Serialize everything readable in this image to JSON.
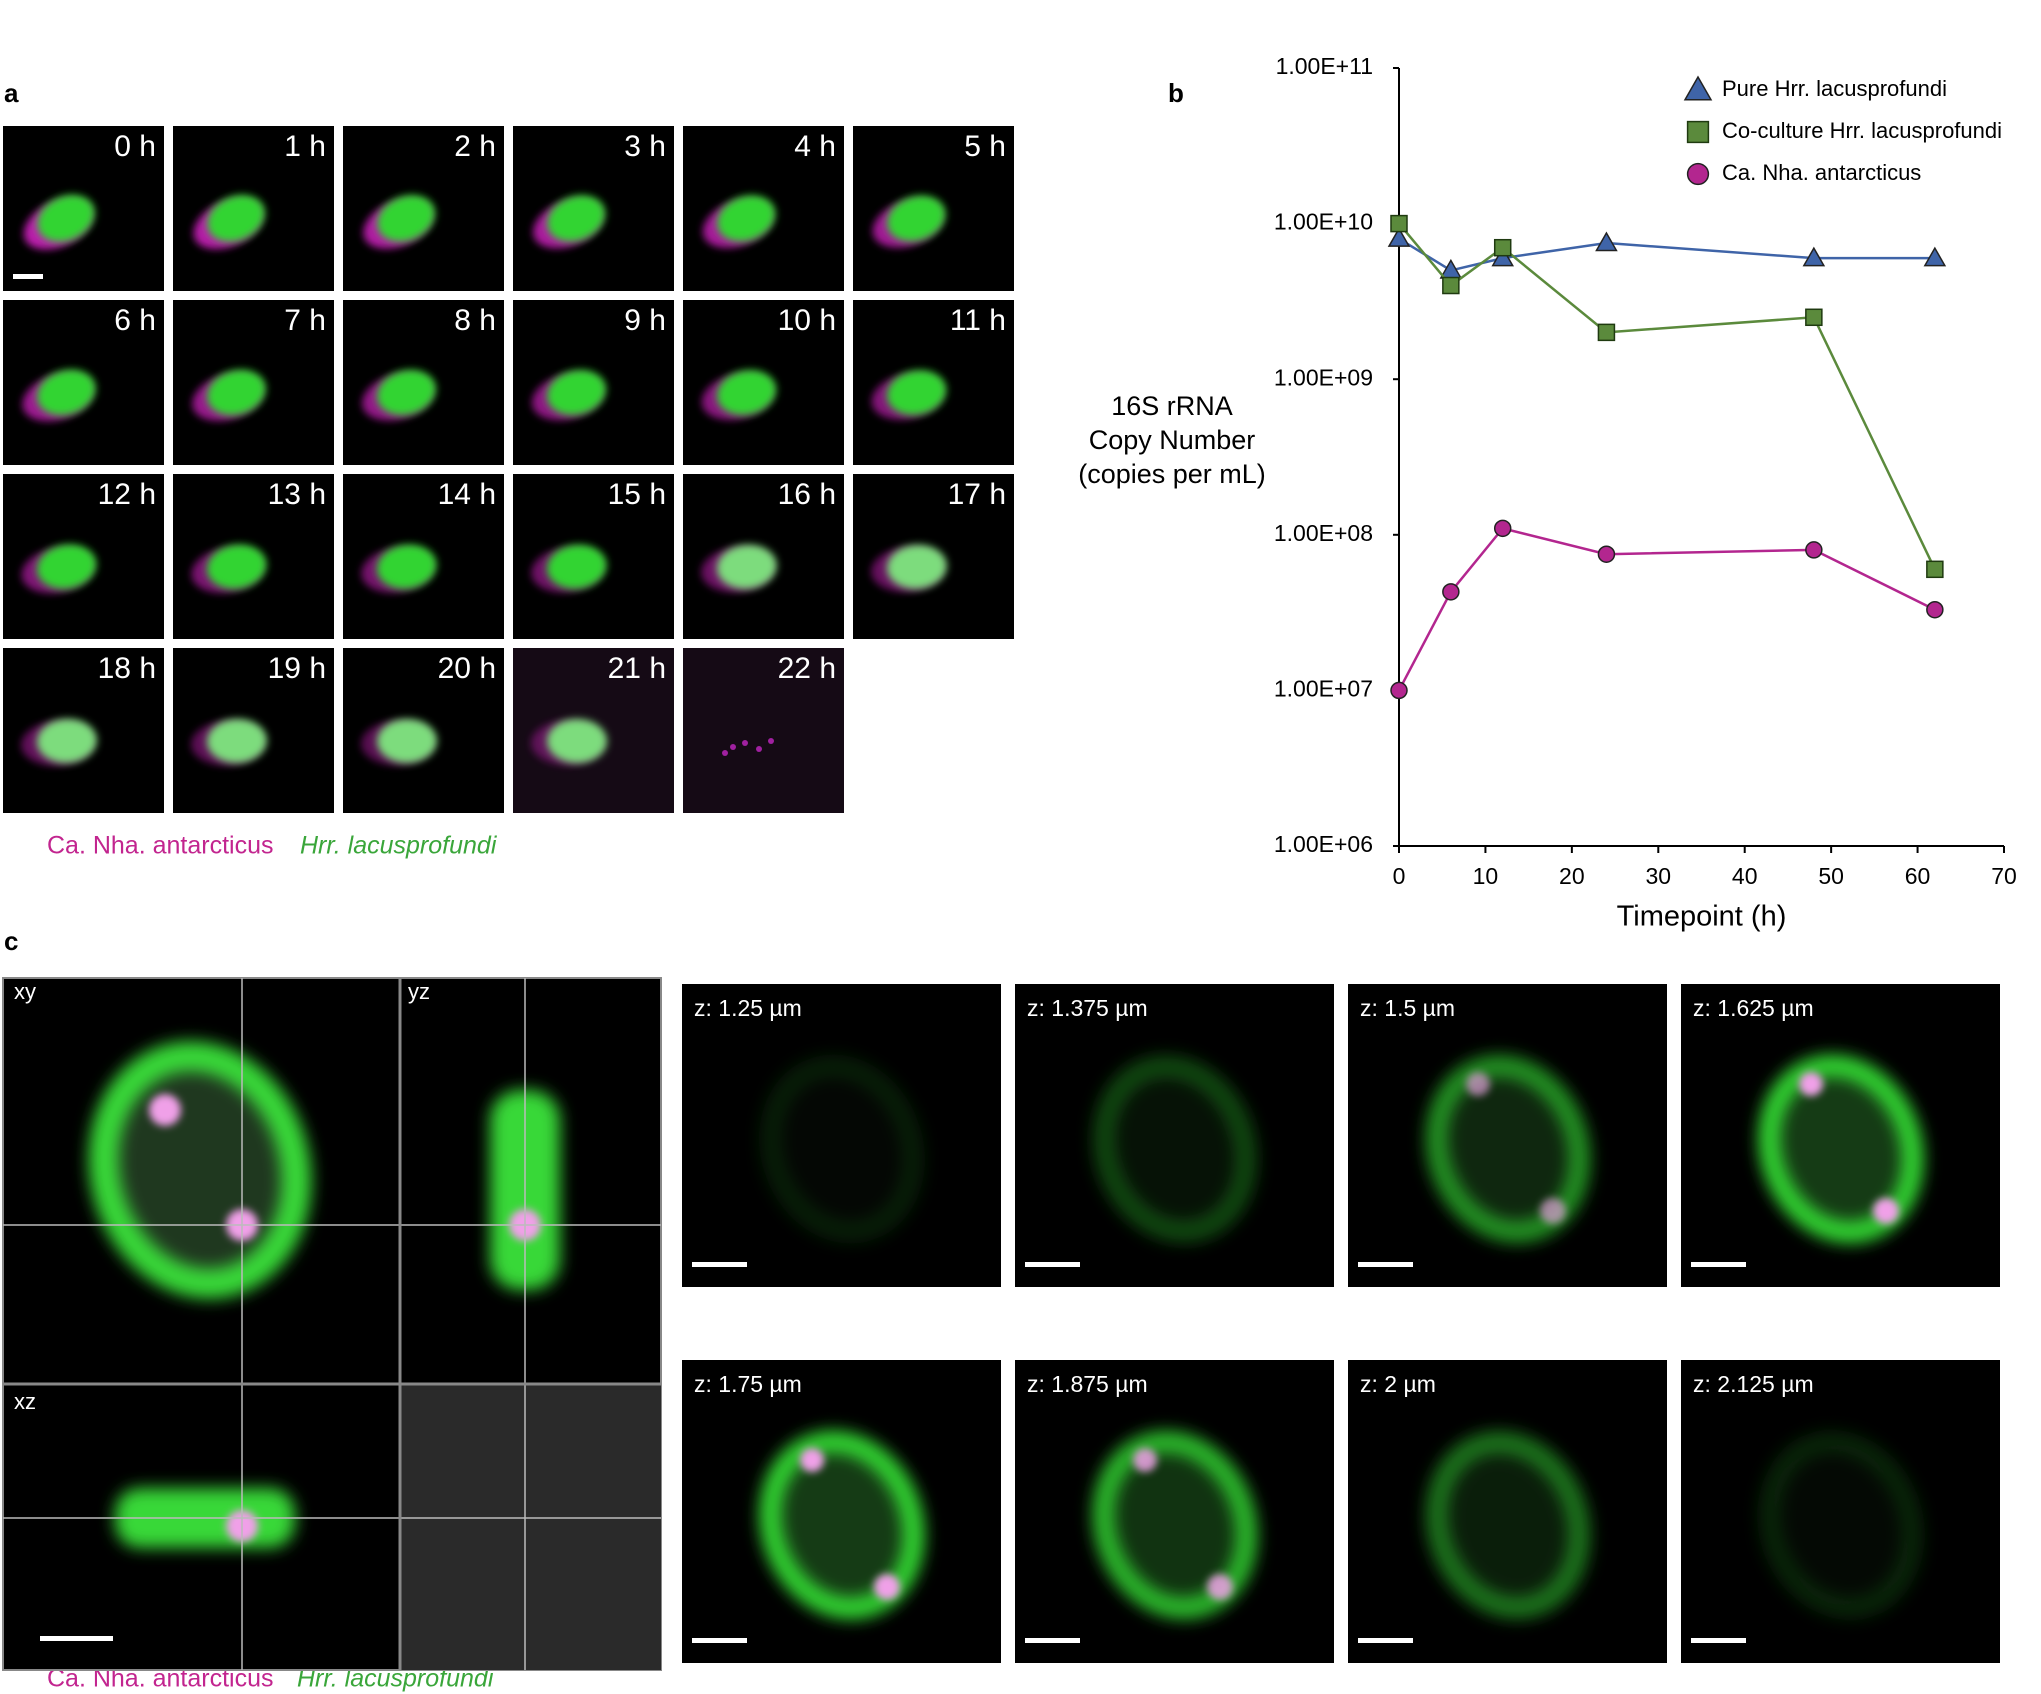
{
  "panel_a": {
    "label": "a",
    "timepoints": [
      "0 h",
      "1 h",
      "2 h",
      "3 h",
      "4 h",
      "5 h",
      "6 h",
      "7 h",
      "8 h",
      "9 h",
      "10 h",
      "11 h",
      "12 h",
      "13 h",
      "14 h",
      "15 h",
      "16 h",
      "17 h",
      "18 h",
      "19 h",
      "20 h",
      "21 h",
      "22 h"
    ],
    "legend": [
      "Ca. Nha. antarcticus",
      "Hrr. lacusprofundi"
    ]
  },
  "panel_b": {
    "label": "b"
  },
  "chart_data": {
    "type": "line",
    "xlabel": "Timepoint (h)",
    "ylabel": [
      "16S rRNA",
      "Copy Number",
      "(copies per mL)"
    ],
    "x": [
      0,
      6,
      12,
      24,
      48,
      62
    ],
    "series": [
      {
        "name": "Pure Hrr. lacusprofundi",
        "color": "#3f64a8",
        "marker": "triangle",
        "values": [
          8000000000,
          5000000000,
          6000000000,
          7500000000,
          6000000000,
          6000000000
        ]
      },
      {
        "name": "Co-culture Hrr. lacusprofundi",
        "color": "#5b8a3c",
        "marker": "square",
        "values": [
          10000000000,
          4000000000,
          7000000000,
          2000000000,
          2500000000,
          60000000
        ]
      },
      {
        "name": "Ca. Nha. antarcticus",
        "color": "#b3268f",
        "marker": "circle",
        "values": [
          10000000,
          43000000,
          110000000,
          75000000,
          80000000,
          33000000
        ]
      }
    ],
    "xlim": [
      0,
      70
    ],
    "xticks": [
      0,
      10,
      20,
      30,
      40,
      50,
      60,
      70
    ],
    "ylim": [
      1000000,
      100000000000
    ],
    "ylog": true,
    "yticks": [
      {
        "value": 1000000,
        "label": "1.00E+06"
      },
      {
        "value": 10000000,
        "label": "1.00E+07"
      },
      {
        "value": 100000000,
        "label": "1.00E+08"
      },
      {
        "value": 1000000000,
        "label": "1.00E+09"
      },
      {
        "value": 10000000000,
        "label": "1.00E+10"
      },
      {
        "value": 100000000000,
        "label": "1.00E+11"
      }
    ],
    "legend": "upper right"
  },
  "panel_c": {
    "label": "c",
    "views": [
      "xy",
      "yz",
      "xz"
    ],
    "slices": [
      "z: 1.25 µm",
      "z: 1.375 µm",
      "z: 1.5 µm",
      "z: 1.625 µm",
      "z: 1.75 µm",
      "z: 1.875 µm",
      "z: 2 µm",
      "z: 2.125 µm"
    ],
    "legend": [
      "Ca. Nha. antarcticus",
      "Hrr. lacusprofundi"
    ]
  }
}
